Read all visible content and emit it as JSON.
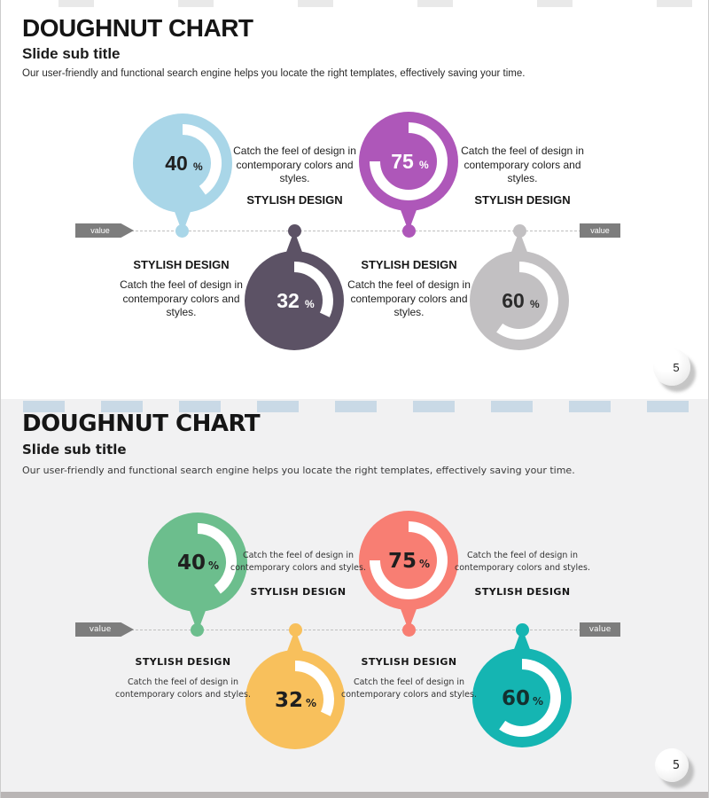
{
  "slides": [
    {
      "title": "DOUGHNUT CHART",
      "subtitle": "Slide sub title",
      "description": "Our user-friendly and functional search engine helps you locate the right templates, effectively saving your time.",
      "value_label_left": "value",
      "value_label_right": "value",
      "page_number": "5",
      "items": [
        {
          "percent": 40,
          "percent_label": "40",
          "percent_suffix": "%",
          "color": "#a9d6e8",
          "text_color": "#1f1f1f",
          "position": "above",
          "heading": "STYLISH DESIGN",
          "body": "Catch the feel of design in contemporary colors and styles."
        },
        {
          "percent": 75,
          "percent_label": "75",
          "percent_suffix": "%",
          "color": "#ae57b9",
          "text_color": "#ffffff",
          "position": "above",
          "heading": "STYLISH DESIGN",
          "body": "Catch the feel of design in contemporary colors and styles."
        },
        {
          "percent": 32,
          "percent_label": "32",
          "percent_suffix": "%",
          "color": "#5c5265",
          "text_color": "#ffffff",
          "position": "below",
          "heading": "STYLISH DESIGN",
          "body": "Catch the feel of design in contemporary colors and styles."
        },
        {
          "percent": 60,
          "percent_label": "60",
          "percent_suffix": "%",
          "color": "#c2c0c2",
          "text_color": "#2b2b2b",
          "position": "below",
          "heading": "STYLISH DESIGN",
          "body": "Catch the feel of design in contemporary colors and styles."
        }
      ]
    },
    {
      "title": "DOUGHNUT CHART",
      "subtitle": "Slide sub title",
      "description": "Our user-friendly and functional search engine helps you locate the right templates, effectively saving your time.",
      "value_label_left": "value",
      "value_label_right": "value",
      "page_number": "5",
      "items": [
        {
          "percent": 40,
          "percent_label": "40",
          "percent_suffix": "%",
          "color": "#6cbe8d",
          "text_color": "#1f1f1f",
          "position": "above",
          "heading": "STYLISH DESIGN",
          "body": "Catch the feel of design in contemporary colors and styles."
        },
        {
          "percent": 75,
          "percent_label": "75",
          "percent_suffix": "%",
          "color": "#f87e73",
          "text_color": "#1f1f1f",
          "position": "above",
          "heading": "STYLISH DESIGN",
          "body": "Catch the feel of design in contemporary colors and styles."
        },
        {
          "percent": 32,
          "percent_label": "32",
          "percent_suffix": "%",
          "color": "#f8c05c",
          "text_color": "#1f1f1f",
          "position": "below",
          "heading": "STYLISH DESIGN",
          "body": "Catch the feel of design in contemporary colors and styles."
        },
        {
          "percent": 60,
          "percent_label": "60",
          "percent_suffix": "%",
          "color": "#15b5b2",
          "text_color": "#14302f",
          "position": "below",
          "heading": "STYLISH DESIGN",
          "body": "Catch the feel of design in contemporary colors and styles."
        }
      ]
    }
  ],
  "chart_data": [
    {
      "type": "pie",
      "subtype": "doughnut",
      "slide": 1,
      "title": "DOUGHNUT CHART",
      "labels": [
        "STYLISH DESIGN",
        "STYLISH DESIGN",
        "STYLISH DESIGN",
        "STYLISH DESIGN"
      ],
      "values": [
        40,
        75,
        32,
        60
      ],
      "unit": "%",
      "colors": [
        "#a9d6e8",
        "#ae57b9",
        "#5c5265",
        "#c2c0c2"
      ],
      "axis_labels": [
        "value",
        "value"
      ],
      "legend_position": "none"
    },
    {
      "type": "pie",
      "subtype": "doughnut",
      "slide": 2,
      "title": "DOUGHNUT CHART",
      "labels": [
        "STYLISH DESIGN",
        "STYLISH DESIGN",
        "STYLISH DESIGN",
        "STYLISH DESIGN"
      ],
      "values": [
        40,
        75,
        32,
        60
      ],
      "unit": "%",
      "colors": [
        "#6cbe8d",
        "#f87e73",
        "#f8c05c",
        "#15b5b2"
      ],
      "axis_labels": [
        "value",
        "value"
      ],
      "legend_position": "none"
    }
  ]
}
